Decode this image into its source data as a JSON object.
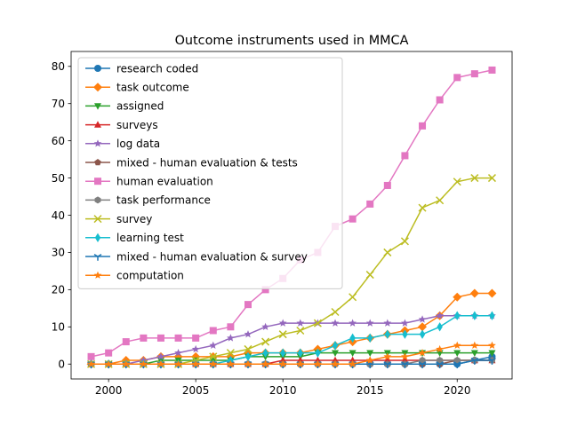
{
  "chart_data": {
    "type": "line",
    "title": "Outcome instruments used in MMCA",
    "xlabel": "",
    "ylabel": "",
    "xlim": [
      1997.85,
      2023.15
    ],
    "ylim": [
      -4,
      84
    ],
    "xticks": [
      2000,
      2005,
      2010,
      2015,
      2020
    ],
    "yticks": [
      0,
      10,
      20,
      30,
      40,
      50,
      60,
      70,
      80
    ],
    "grid": false,
    "legend_position": "upper-left",
    "x": [
      1999,
      2000,
      2001,
      2002,
      2003,
      2004,
      2005,
      2006,
      2007,
      2008,
      2009,
      2010,
      2011,
      2012,
      2013,
      2014,
      2015,
      2016,
      2017,
      2018,
      2019,
      2020,
      2021,
      2022
    ],
    "series": [
      {
        "name": "research coded",
        "color": "#1f77b4",
        "marker": "circle",
        "values": [
          0,
          0,
          0,
          0,
          0,
          0,
          0,
          0,
          0,
          0,
          0,
          0,
          0,
          0,
          0,
          0,
          0,
          0,
          0,
          0,
          0,
          0,
          1,
          2
        ]
      },
      {
        "name": "task outcome",
        "color": "#ff7f0e",
        "marker": "diamond",
        "values": [
          0,
          0,
          1,
          1,
          2,
          2,
          2,
          2,
          2,
          3,
          3,
          3,
          3,
          4,
          5,
          6,
          7,
          8,
          9,
          10,
          13,
          18,
          19,
          19
        ]
      },
      {
        "name": "assigned",
        "color": "#2ca02c",
        "marker": "triangle-down",
        "values": [
          0,
          0,
          0,
          0,
          1,
          1,
          1,
          1,
          1,
          2,
          2,
          2,
          2,
          3,
          3,
          3,
          3,
          3,
          3,
          3,
          3,
          3,
          3,
          3
        ]
      },
      {
        "name": "surveys",
        "color": "#d62728",
        "marker": "triangle-up",
        "values": [
          0,
          0,
          0,
          0,
          0,
          0,
          0,
          0,
          0,
          0,
          0,
          1,
          1,
          1,
          1,
          1,
          1,
          1,
          1,
          1,
          1,
          1,
          1,
          1
        ]
      },
      {
        "name": "log data",
        "color": "#9467bd",
        "marker": "star",
        "values": [
          0,
          0,
          0,
          1,
          2,
          3,
          4,
          5,
          7,
          8,
          10,
          11,
          11,
          11,
          11,
          11,
          11,
          11,
          11,
          12,
          13,
          13,
          13,
          13
        ]
      },
      {
        "name": "mixed - human evaluation & tests",
        "color": "#8c564b",
        "marker": "pentagon",
        "values": [
          0,
          0,
          0,
          0,
          0,
          0,
          0,
          0,
          0,
          0,
          0,
          0,
          0,
          0,
          0,
          0,
          0,
          0,
          0,
          0,
          0,
          1,
          1,
          1
        ]
      },
      {
        "name": "human evaluation",
        "color": "#e377c2",
        "marker": "square",
        "values": [
          2,
          3,
          6,
          7,
          7,
          7,
          7,
          9,
          10,
          16,
          20,
          23,
          28,
          30,
          37,
          39,
          43,
          48,
          56,
          64,
          71,
          77,
          78,
          79
        ]
      },
      {
        "name": "task performance",
        "color": "#7f7f7f",
        "marker": "hexagon",
        "values": [
          0,
          0,
          0,
          0,
          0,
          0,
          0,
          0,
          0,
          0,
          0,
          0,
          0,
          0,
          0,
          0,
          0,
          0,
          0,
          1,
          1,
          1,
          1,
          1
        ]
      },
      {
        "name": "survey",
        "color": "#bcbd22",
        "marker": "x",
        "values": [
          0,
          0,
          0,
          0,
          0,
          0,
          1,
          2,
          3,
          4,
          6,
          8,
          9,
          11,
          14,
          18,
          24,
          30,
          33,
          42,
          44,
          49,
          50,
          50
        ]
      },
      {
        "name": "learning test",
        "color": "#17becf",
        "marker": "thin-diamond",
        "values": [
          0,
          0,
          0,
          0,
          0,
          0,
          0,
          0,
          1,
          2,
          3,
          3,
          3,
          3,
          5,
          7,
          7,
          8,
          8,
          8,
          10,
          13,
          13,
          13
        ]
      },
      {
        "name": "mixed - human evaluation & survey",
        "color": "#1f77b4",
        "marker": "tri-down",
        "values": [
          0,
          0,
          0,
          0,
          0,
          0,
          0,
          0,
          0,
          0,
          0,
          0,
          0,
          0,
          0,
          0,
          0,
          0,
          0,
          0,
          0,
          0,
          1,
          1
        ]
      },
      {
        "name": "computation",
        "color": "#ff7f0e",
        "marker": "star",
        "values": [
          0,
          0,
          0,
          0,
          0,
          0,
          0,
          0,
          0,
          0,
          0,
          0,
          0,
          0,
          0,
          0,
          1,
          2,
          2,
          3,
          4,
          5,
          5,
          5
        ]
      }
    ]
  }
}
